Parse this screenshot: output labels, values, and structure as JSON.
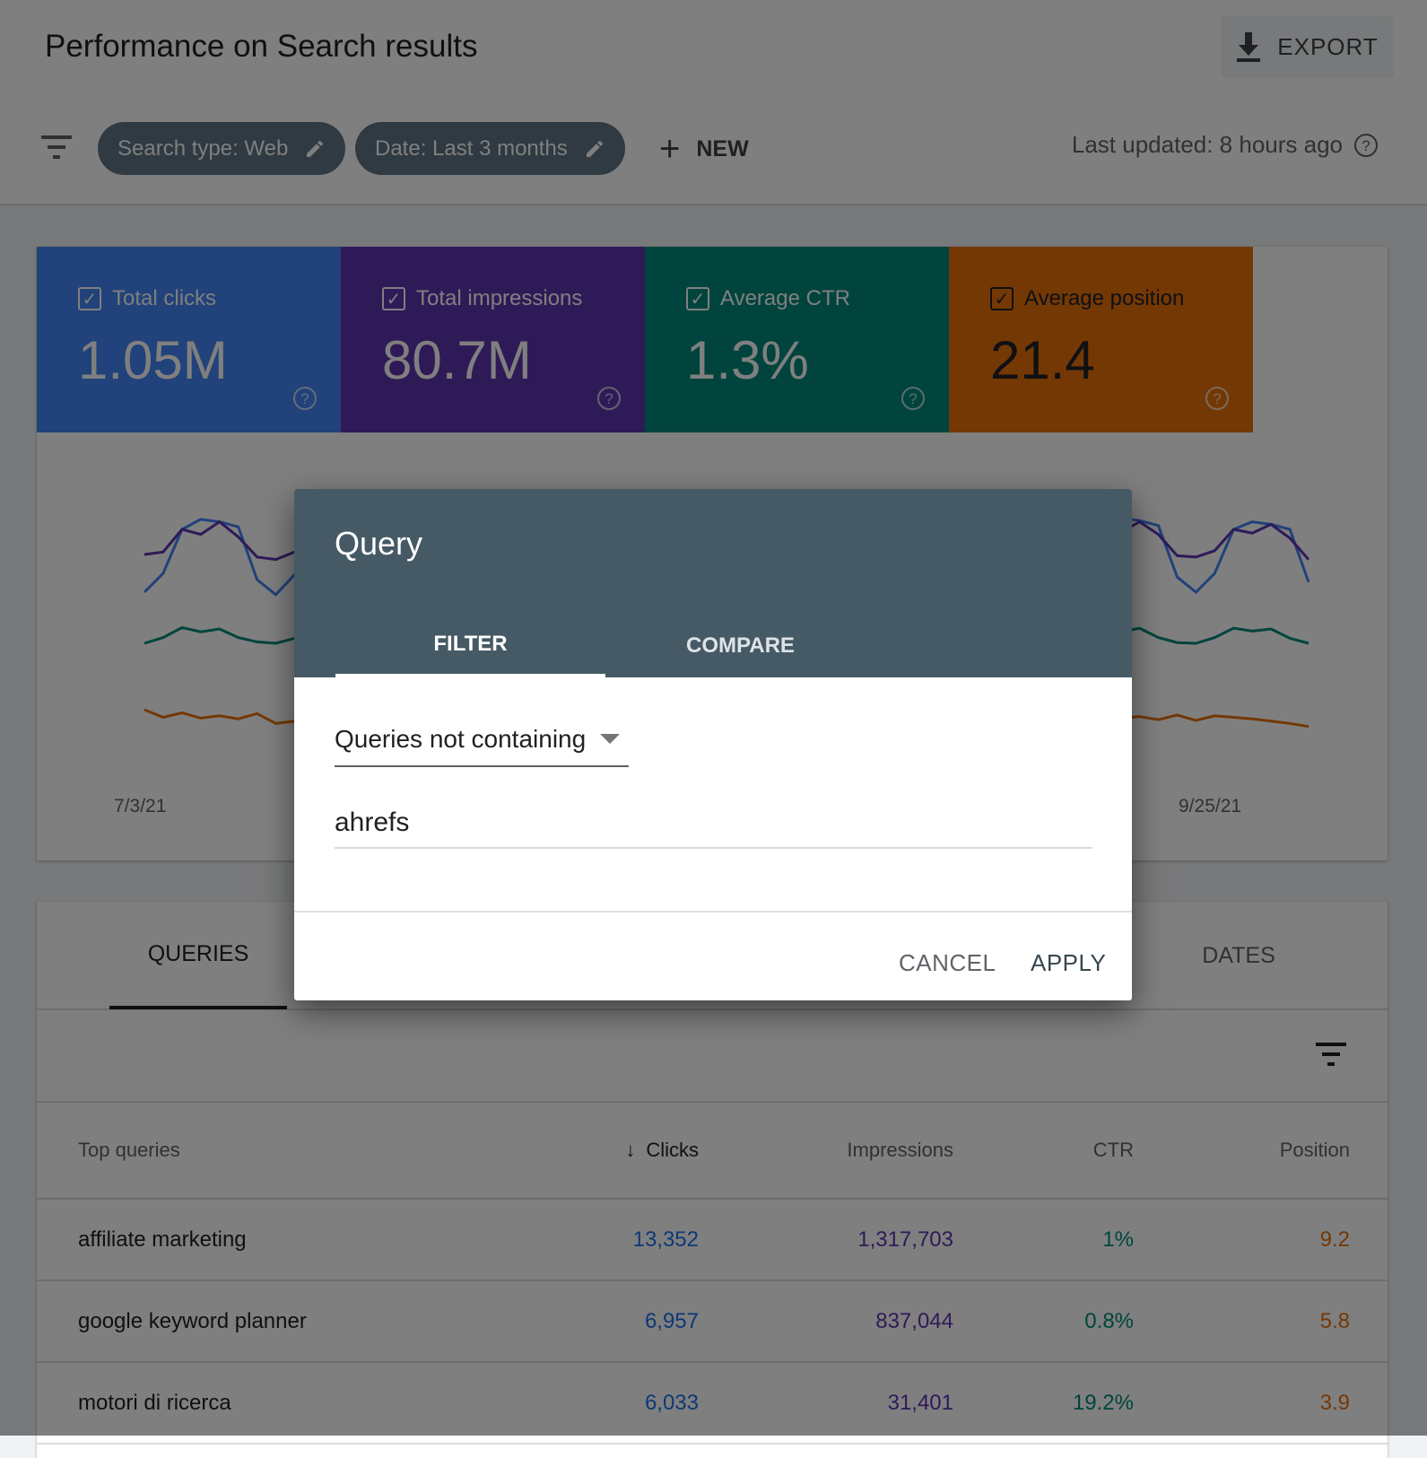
{
  "header": {
    "title": "Performance on Search results",
    "export_label": "EXPORT",
    "export_icon": "download-icon"
  },
  "filters": {
    "menu_icon": "filter-list-icon",
    "chips": [
      {
        "label": "Search type: Web",
        "icon": "edit-pencil-icon"
      },
      {
        "label": "Date: Last 3 months",
        "icon": "edit-pencil-icon"
      }
    ],
    "new_label": "NEW",
    "last_updated": "Last updated: 8 hours ago"
  },
  "metrics": [
    {
      "label": "Total clicks",
      "value": "1.05M",
      "checked": true,
      "color": "#4285f4"
    },
    {
      "label": "Total impressions",
      "value": "80.7M",
      "checked": true,
      "color": "#5e35b1"
    },
    {
      "label": "Average CTR",
      "value": "1.3%",
      "checked": true,
      "color": "#00897b"
    },
    {
      "label": "Average position",
      "value": "21.4",
      "checked": true,
      "color": "#e8710a"
    }
  ],
  "chart": {
    "x_labels": [
      "7/3/21",
      "9/25/21"
    ],
    "series": [
      {
        "metric": "clicks",
        "color": "#4285f4",
        "values": [
          30,
          45,
          80,
          88,
          86,
          82,
          40,
          28,
          44,
          78,
          86,
          85,
          80,
          38,
          32,
          46,
          82,
          90,
          88,
          80,
          42,
          30,
          44,
          79,
          86,
          84,
          81,
          39,
          31,
          46,
          80,
          88,
          85,
          82,
          41,
          29,
          45,
          81,
          87,
          86,
          80,
          40,
          30,
          44,
          78,
          85,
          84,
          79,
          38,
          32,
          47,
          82,
          89,
          87,
          83,
          42,
          30,
          45,
          80,
          86,
          84,
          80,
          38
        ]
      },
      {
        "metric": "impressions",
        "color": "#5e35b1",
        "values": [
          60,
          62,
          80,
          76,
          86,
          74,
          58,
          56,
          62,
          78,
          77,
          84,
          72,
          57,
          60,
          64,
          82,
          78,
          86,
          75,
          59,
          57,
          63,
          80,
          76,
          85,
          73,
          58,
          59,
          64,
          81,
          77,
          84,
          74,
          57,
          58,
          62,
          79,
          78,
          86,
          75,
          58,
          57,
          63,
          80,
          76,
          85,
          73,
          57,
          60,
          64,
          82,
          78,
          86,
          76,
          59,
          58,
          63,
          80,
          77,
          84,
          73,
          56
        ]
      },
      {
        "metric": "ctr",
        "color": "#00897b",
        "values": [
          50,
          58,
          72,
          66,
          70,
          58,
          52,
          50,
          57,
          70,
          67,
          71,
          57,
          51,
          52,
          59,
          73,
          68,
          71,
          59,
          52,
          50,
          58,
          71,
          66,
          70,
          58,
          51,
          51,
          58,
          72,
          67,
          70,
          57,
          52,
          50,
          57,
          71,
          66,
          71,
          58,
          51,
          51,
          59,
          72,
          67,
          70,
          58,
          52,
          50,
          58,
          72,
          66,
          71,
          58,
          51,
          50,
          58,
          71,
          67,
          70,
          57,
          50
        ]
      },
      {
        "metric": "position",
        "color": "#e8710a",
        "values": [
          60,
          50,
          56,
          49,
          52,
          48,
          55,
          42,
          45,
          50,
          48,
          47,
          44,
          52,
          58,
          50,
          55,
          49,
          51,
          47,
          54,
          56,
          49,
          55,
          48,
          51,
          47,
          53,
          59,
          50,
          56,
          49,
          52,
          48,
          55,
          57,
          50,
          55,
          49,
          51,
          46,
          54,
          58,
          49,
          56,
          48,
          52,
          47,
          55,
          57,
          50,
          55,
          49,
          51,
          47,
          53,
          46,
          52,
          50,
          48,
          45,
          42,
          38
        ]
      }
    ]
  },
  "table": {
    "tabs": [
      "QUERIES",
      "DATES"
    ],
    "filter_icon": "filter-list-icon",
    "columns": [
      "Top queries",
      "Clicks",
      "Impressions",
      "CTR",
      "Position"
    ],
    "rows": [
      [
        "affiliate marketing",
        "13,352",
        "1,317,703",
        "1%",
        "9.2"
      ],
      [
        "google keyword planner",
        "6,957",
        "837,044",
        "0.8%",
        "5.8"
      ],
      [
        "motori di ricerca",
        "6,033",
        "31,401",
        "19.2%",
        "3.9"
      ]
    ]
  },
  "dialog": {
    "title": "Query",
    "tabs": [
      "FILTER",
      "COMPARE"
    ],
    "active_tab": "FILTER",
    "select_value": "Queries not containing",
    "input_value": "ahrefs",
    "cancel_label": "CANCEL",
    "apply_label": "APPLY"
  }
}
